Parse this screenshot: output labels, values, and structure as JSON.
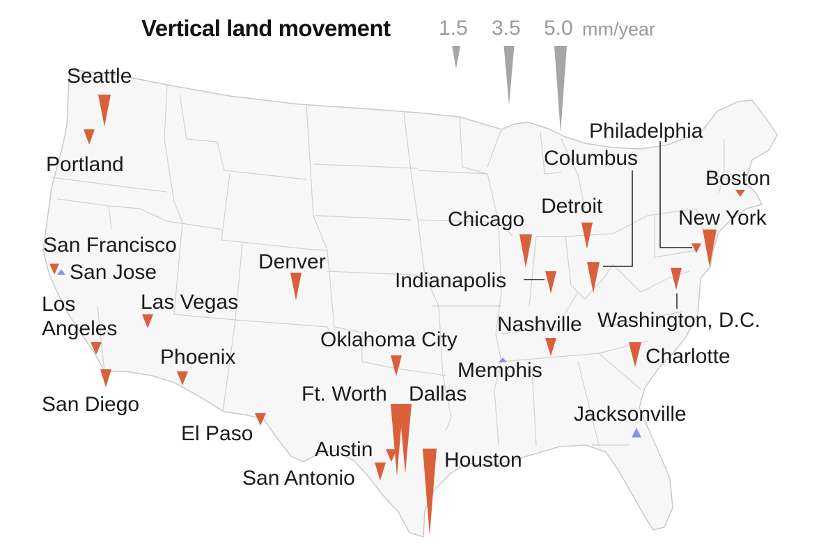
{
  "title": "Vertical land movement",
  "legend": {
    "items": [
      {
        "label": "1.5",
        "value": 1.5
      },
      {
        "label": "3.5",
        "value": 3.5
      },
      {
        "label": "5.0",
        "value": 5.0
      }
    ],
    "unit": "mm/year",
    "color": "#a6a6a6"
  },
  "colors": {
    "subsidence": "#d9603b",
    "uplift": "#8e8ee6",
    "land": "#f7f7f7",
    "border": "#c9c9c9"
  },
  "cities": {
    "seattle": {
      "label": "Seattle"
    },
    "portland": {
      "label": "Portland"
    },
    "san_francisco": {
      "label": "San Francisco"
    },
    "san_jose": {
      "label": "San Jose"
    },
    "los_angeles": {
      "line1": "Los",
      "line2": "Angeles"
    },
    "las_vegas": {
      "label": "Las Vegas"
    },
    "phoenix": {
      "label": "Phoenix"
    },
    "san_diego": {
      "label": "San Diego"
    },
    "el_paso": {
      "label": "El Paso"
    },
    "denver": {
      "label": "Denver"
    },
    "oklahoma_city": {
      "label": "Oklahoma City"
    },
    "ft_worth": {
      "label": "Ft. Worth"
    },
    "dallas": {
      "label": "Dallas"
    },
    "austin": {
      "label": "Austin"
    },
    "san_antonio": {
      "label": "San Antonio"
    },
    "houston": {
      "label": "Houston"
    },
    "chicago": {
      "label": "Chicago"
    },
    "indianapolis": {
      "label": "Indianapolis"
    },
    "detroit": {
      "label": "Detroit"
    },
    "columbus": {
      "label": "Columbus"
    },
    "philadelphia": {
      "label": "Philadelphia"
    },
    "boston": {
      "label": "Boston"
    },
    "new_york": {
      "label": "New York"
    },
    "nashville": {
      "label": "Nashville"
    },
    "memphis": {
      "label": "Memphis"
    },
    "washington_dc": {
      "label": "Washington, D.C."
    },
    "charlotte": {
      "label": "Charlotte"
    },
    "jacksonville": {
      "label": "Jacksonville"
    }
  }
}
